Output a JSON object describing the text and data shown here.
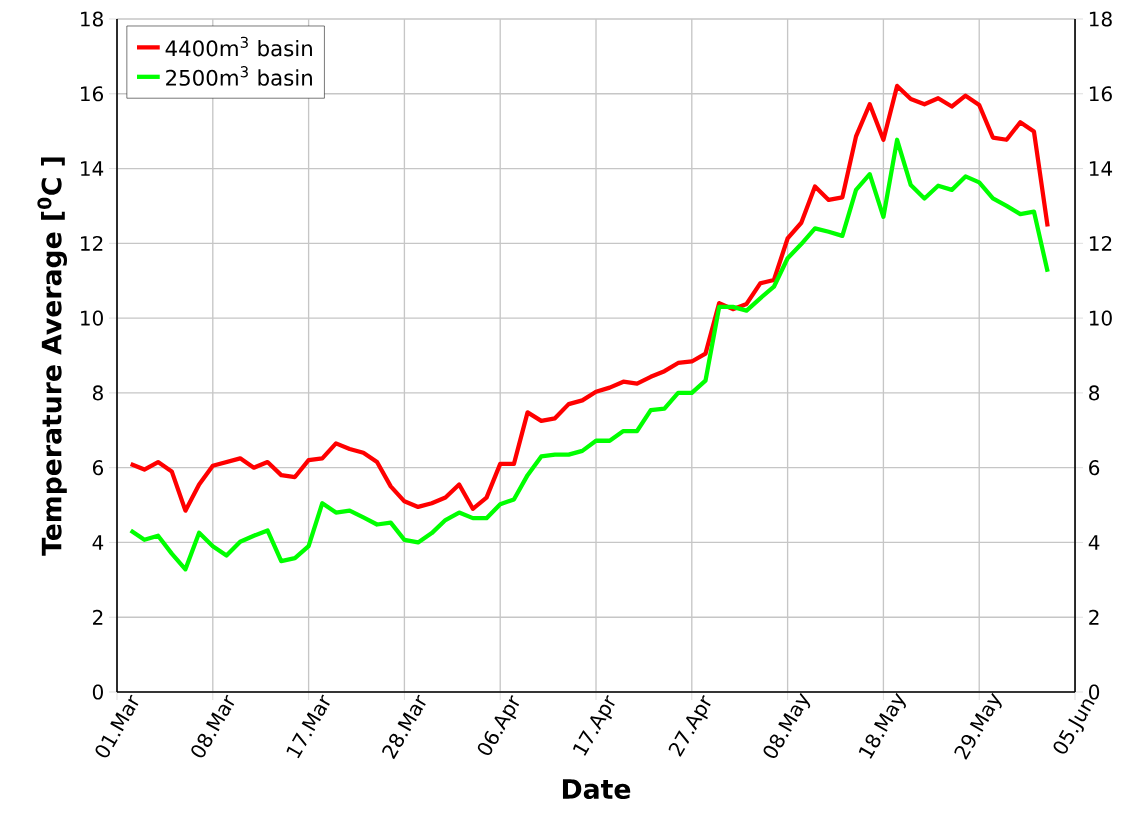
{
  "chart_data": {
    "type": "line",
    "xlabel": "Date",
    "ylabel": "Temperature Average [$^{0}$C ]",
    "categories": [
      "01.Mar",
      null,
      null,
      null,
      null,
      null,
      null,
      "08.Mar",
      null,
      null,
      null,
      null,
      null,
      null,
      "17.Mar",
      null,
      null,
      null,
      null,
      null,
      null,
      "28.Mar",
      null,
      null,
      null,
      null,
      null,
      null,
      "06.Apr",
      null,
      null,
      null,
      null,
      null,
      null,
      "17.Apr",
      null,
      null,
      null,
      null,
      null,
      null,
      "27.Apr",
      null,
      null,
      null,
      null,
      null,
      null,
      "08.May",
      null,
      null,
      null,
      null,
      null,
      null,
      "18.May",
      null,
      null,
      null,
      null,
      null,
      null,
      "29.May",
      null,
      null,
      null,
      null,
      null,
      null,
      "05.Jun"
    ],
    "series": [
      {
        "name": "4400m$^{3}$ basin",
        "color": "#ff0000",
        "values": [
          null,
          6.1,
          5.95,
          6.15,
          5.9,
          4.85,
          5.55,
          6.05,
          6.15,
          6.25,
          6.0,
          6.15,
          5.8,
          5.75,
          6.2,
          6.25,
          6.65,
          6.5,
          6.4,
          6.15,
          5.5,
          5.1,
          4.95,
          5.05,
          5.2,
          5.55,
          4.9,
          5.2,
          6.1,
          6.1,
          7.48,
          7.25,
          7.32,
          7.7,
          7.8,
          8.03,
          8.14,
          8.3,
          8.25,
          8.43,
          8.58,
          8.8,
          8.84,
          9.05,
          10.4,
          10.24,
          10.38,
          10.93,
          11.02,
          12.13,
          12.55,
          13.52,
          13.16,
          13.23,
          14.86,
          15.72,
          14.77,
          16.21,
          15.86,
          15.72,
          15.88,
          15.66,
          15.95,
          15.7,
          14.83,
          14.77,
          15.24,
          14.99,
          12.45,
          null,
          null
        ]
      },
      {
        "name": "2500m$^{3}$ basin",
        "color": "#00ff00",
        "values": [
          null,
          4.32,
          4.07,
          4.18,
          3.7,
          3.28,
          4.26,
          3.9,
          3.65,
          4.02,
          4.18,
          4.32,
          3.5,
          3.58,
          3.9,
          5.05,
          4.8,
          4.85,
          4.67,
          4.48,
          4.53,
          4.07,
          4.0,
          4.25,
          4.6,
          4.8,
          4.65,
          4.65,
          5.02,
          5.15,
          5.8,
          6.3,
          6.35,
          6.35,
          6.45,
          6.72,
          6.72,
          6.98,
          6.98,
          7.54,
          7.58,
          8.0,
          8.0,
          8.33,
          10.3,
          10.3,
          10.2,
          10.53,
          10.84,
          11.6,
          11.98,
          12.4,
          12.31,
          12.2,
          13.43,
          13.85,
          12.71,
          14.77,
          13.56,
          13.2,
          13.54,
          13.43,
          13.79,
          13.63,
          13.2,
          13.0,
          12.78,
          12.85,
          11.24,
          null,
          null
        ]
      }
    ],
    "ylim": [
      0,
      18
    ],
    "yticks": [
      0,
      2,
      4,
      6,
      8,
      10,
      12,
      14,
      16,
      18
    ],
    "y2lim": [
      0,
      18
    ],
    "y2ticks": [
      0,
      2,
      4,
      6,
      8,
      10,
      12,
      14,
      16,
      18
    ],
    "grid": true,
    "legend": "top left",
    "marker": "none",
    "line_style": "solid"
  }
}
